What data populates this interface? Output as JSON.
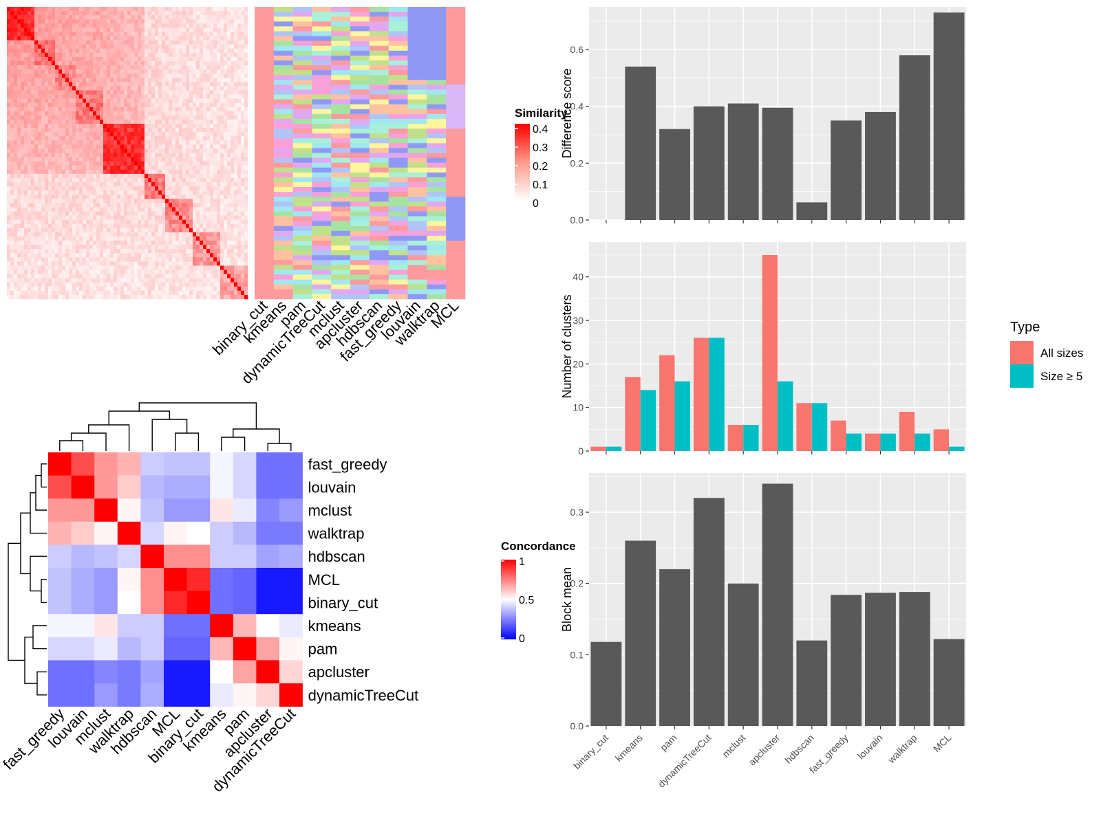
{
  "methods_order": [
    "binary_cut",
    "kmeans",
    "pam",
    "dynamicTreeCut",
    "mclust",
    "apcluster",
    "hdbscan",
    "fast_greedy",
    "louvain",
    "walktrap",
    "MCL"
  ],
  "similarity_legend": {
    "title": "Similarity",
    "ticks": [
      "0.4",
      "0.3",
      "0.2",
      "0.1",
      "0"
    ]
  },
  "concordance_legend": {
    "title": "Concordance",
    "ticks": [
      "1",
      "0.5",
      "0"
    ]
  },
  "concordance_rows": [
    "fast_greedy",
    "louvain",
    "mclust",
    "walktrap",
    "hdbscan",
    "MCL",
    "binary_cut",
    "kmeans",
    "pam",
    "apcluster",
    "dynamicTreeCut"
  ],
  "concordance_values": [
    [
      1.0,
      0.85,
      0.7,
      0.65,
      0.4,
      0.38,
      0.38,
      0.48,
      0.42,
      0.22,
      0.22
    ],
    [
      0.85,
      1.0,
      0.7,
      0.6,
      0.36,
      0.34,
      0.34,
      0.48,
      0.42,
      0.22,
      0.22
    ],
    [
      0.7,
      0.7,
      1.0,
      0.52,
      0.38,
      0.3,
      0.3,
      0.55,
      0.46,
      0.26,
      0.3
    ],
    [
      0.65,
      0.6,
      0.52,
      1.0,
      0.42,
      0.52,
      0.5,
      0.4,
      0.36,
      0.24,
      0.24
    ],
    [
      0.4,
      0.36,
      0.38,
      0.42,
      1.0,
      0.72,
      0.72,
      0.4,
      0.4,
      0.32,
      0.34
    ],
    [
      0.38,
      0.34,
      0.3,
      0.52,
      0.72,
      1.0,
      0.92,
      0.22,
      0.2,
      0.05,
      0.05
    ],
    [
      0.38,
      0.34,
      0.3,
      0.5,
      0.72,
      0.92,
      1.0,
      0.22,
      0.2,
      0.05,
      0.05
    ],
    [
      0.48,
      0.48,
      0.55,
      0.4,
      0.4,
      0.22,
      0.22,
      1.0,
      0.64,
      0.5,
      0.46
    ],
    [
      0.42,
      0.42,
      0.46,
      0.36,
      0.4,
      0.2,
      0.2,
      0.64,
      1.0,
      0.68,
      0.52
    ],
    [
      0.22,
      0.22,
      0.26,
      0.24,
      0.32,
      0.05,
      0.05,
      0.5,
      0.68,
      1.0,
      0.58
    ],
    [
      0.22,
      0.22,
      0.3,
      0.24,
      0.34,
      0.05,
      0.05,
      0.46,
      0.52,
      0.58,
      1.0
    ]
  ],
  "colors": {
    "bar_gray": "#595959",
    "all_sizes": "#F8766D",
    "size5": "#00BFC4",
    "panel_bg": "#EBEBEB"
  },
  "chart_data": [
    {
      "type": "bar",
      "title": "",
      "ylabel": "Difference score",
      "ylim": [
        0,
        0.75
      ],
      "yticks": [
        "0.0",
        "0.2",
        "0.4",
        "0.6"
      ],
      "categories": [
        "binary_cut",
        "kmeans",
        "pam",
        "dynamicTreeCut",
        "mclust",
        "apcluster",
        "hdbscan",
        "fast_greedy",
        "louvain",
        "walktrap",
        "MCL"
      ],
      "values": [
        0.0,
        0.54,
        0.32,
        0.4,
        0.41,
        0.395,
        0.062,
        0.35,
        0.38,
        0.58,
        0.73
      ]
    },
    {
      "type": "bar",
      "title": "",
      "ylabel": "Number of clusters",
      "ylim": [
        0,
        48
      ],
      "yticks": [
        "0",
        "10",
        "20",
        "30",
        "40"
      ],
      "categories": [
        "binary_cut",
        "kmeans",
        "pam",
        "dynamicTreeCut",
        "mclust",
        "apcluster",
        "hdbscan",
        "fast_greedy",
        "louvain",
        "walktrap",
        "MCL"
      ],
      "legend": {
        "title": "Type",
        "position": "right"
      },
      "series": [
        {
          "name": "All sizes",
          "values": [
            1,
            17,
            22,
            26,
            6,
            45,
            11,
            7,
            4,
            9,
            5
          ]
        },
        {
          "name": "Size ≥ 5",
          "values": [
            1,
            14,
            16,
            26,
            6,
            16,
            11,
            4,
            4,
            4,
            1
          ]
        }
      ]
    },
    {
      "type": "bar",
      "title": "",
      "ylabel": "Block mean",
      "ylim": [
        0,
        0.355
      ],
      "yticks": [
        "0.0",
        "0.1",
        "0.2",
        "0.3"
      ],
      "xtick_labels": [
        "binary_cut",
        "kmeans",
        "pam",
        "dynamicTreeCut",
        "mclust",
        "apcluster",
        "hdbscan",
        "fast_greedy",
        "louvain",
        "walktrap",
        "MCL"
      ],
      "categories": [
        "binary_cut",
        "kmeans",
        "pam",
        "dynamicTreeCut",
        "mclust",
        "apcluster",
        "hdbscan",
        "fast_greedy",
        "louvain",
        "walktrap",
        "MCL"
      ],
      "values": [
        0.118,
        0.26,
        0.22,
        0.32,
        0.2,
        0.34,
        0.12,
        0.184,
        0.187,
        0.188,
        0.122
      ]
    }
  ]
}
